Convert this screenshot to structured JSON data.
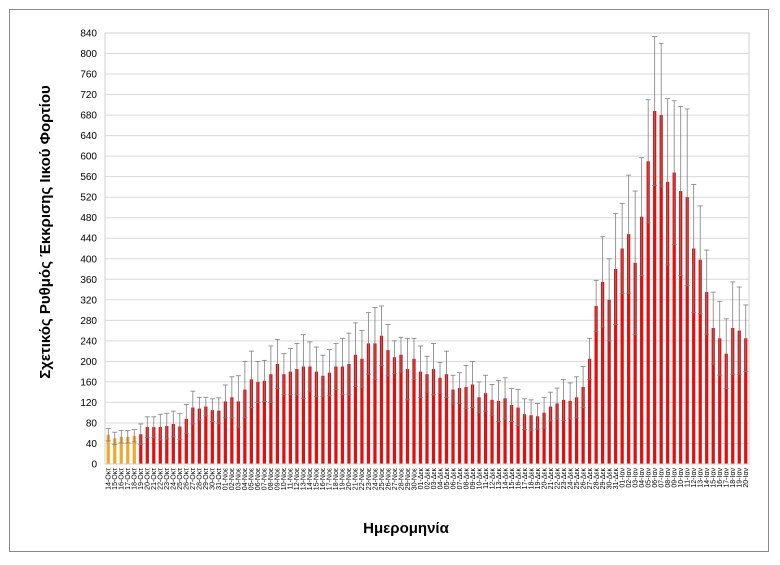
{
  "chart_data": {
    "type": "bar",
    "xlabel": "Ημερομηνία",
    "ylabel": "Σχετικός Ρυθμός Έκκρισης Ιικού Φορτίου",
    "ylim": [
      0,
      840
    ],
    "yticks": [
      0,
      40,
      80,
      120,
      160,
      200,
      240,
      280,
      320,
      360,
      400,
      440,
      480,
      520,
      560,
      600,
      640,
      680,
      720,
      760,
      800,
      840
    ],
    "grid": "horizontal",
    "colors": {
      "early": "#F0A830",
      "main": "#E01010",
      "error": "#7F7F7F"
    },
    "categories": [
      "14-Οκτ",
      "15-Οκτ",
      "16-Οκτ",
      "17-Οκτ",
      "18-Οκτ",
      "19-Οκτ",
      "20-Οκτ",
      "21-Οκτ",
      "22-Οκτ",
      "23-Οκτ",
      "24-Οκτ",
      "25-Οκτ",
      "26-Οκτ",
      "27-Οκτ",
      "28-Οκτ",
      "29-Οκτ",
      "30-Οκτ",
      "31-Οκτ",
      "01-Νοε",
      "02-Νοε",
      "03-Νοε",
      "04-Νοε",
      "05-Νοε",
      "06-Νοε",
      "07-Νοε",
      "08-Νοε",
      "09-Νοε",
      "10-Νοε",
      "11-Νοε",
      "12-Νοε",
      "13-Νοε",
      "14-Νοε",
      "15-Νοε",
      "16-Νοε",
      "17-Νοε",
      "18-Νοε",
      "19-Νοε",
      "20-Νοε",
      "21-Νοε",
      "22-Νοε",
      "23-Νοε",
      "24-Νοε",
      "25-Νοε",
      "26-Νοε",
      "27-Νοε",
      "28-Νοε",
      "29-Νοε",
      "30-Νοε",
      "01-Δεκ",
      "02-Δεκ",
      "03-Δεκ",
      "04-Δεκ",
      "05-Δεκ",
      "06-Δεκ",
      "07-Δεκ",
      "08-Δεκ",
      "09-Δεκ",
      "10-Δεκ",
      "11-Δεκ",
      "12-Δεκ",
      "13-Δεκ",
      "14-Δεκ",
      "15-Δεκ",
      "16-Δεκ",
      "17-Δεκ",
      "18-Δεκ",
      "19-Δεκ",
      "20-Δεκ",
      "21-Δεκ",
      "22-Δεκ",
      "23-Δεκ",
      "24-Δεκ",
      "25-Δεκ",
      "26-Δεκ",
      "27-Δεκ",
      "28-Δεκ",
      "29-Δεκ",
      "30-Δεκ",
      "31-Δεκ",
      "01-Ιαν",
      "02-Ιαν",
      "03-Ιαν",
      "04-Ιαν",
      "05-Ιαν",
      "06-Ιαν",
      "07-Ιαν",
      "08-Ιαν",
      "09-Ιαν",
      "10-Ιαν",
      "11-Ιαν",
      "12-Ιαν",
      "13-Ιαν",
      "14-Ιαν",
      "15-Ιαν",
      "16-Ιαν",
      "17-Ιαν",
      "18-Ιαν",
      "19-Ιαν",
      "20-Ιαν"
    ],
    "values": [
      57,
      50,
      53,
      53,
      55,
      58,
      72,
      72,
      72,
      74,
      78,
      73,
      88,
      110,
      108,
      112,
      105,
      104,
      122,
      130,
      122,
      145,
      165,
      160,
      162,
      175,
      195,
      175,
      180,
      185,
      190,
      190,
      180,
      172,
      178,
      190,
      190,
      195,
      213,
      205,
      235,
      235,
      250,
      222,
      208,
      213,
      185,
      205,
      180,
      175,
      185,
      168,
      175,
      145,
      148,
      150,
      155,
      130,
      138,
      125,
      123,
      128,
      115,
      110,
      97,
      95,
      93,
      100,
      112,
      118,
      125,
      123,
      130,
      150,
      205,
      308,
      355,
      320,
      380,
      420,
      448,
      392,
      482,
      590,
      688,
      680,
      550,
      568,
      532,
      520,
      420,
      398,
      335,
      265,
      245,
      215,
      265,
      260,
      245
    ],
    "errors": [
      12,
      12,
      12,
      12,
      12,
      20,
      20,
      20,
      25,
      25,
      25,
      25,
      28,
      32,
      22,
      18,
      22,
      25,
      32,
      40,
      50,
      55,
      55,
      40,
      40,
      55,
      48,
      40,
      45,
      50,
      62,
      48,
      48,
      40,
      45,
      45,
      55,
      60,
      62,
      55,
      60,
      70,
      58,
      50,
      32,
      34,
      60,
      40,
      50,
      35,
      50,
      30,
      45,
      28,
      30,
      42,
      45,
      30,
      35,
      30,
      40,
      40,
      32,
      35,
      30,
      30,
      25,
      30,
      28,
      30,
      40,
      35,
      40,
      40,
      40,
      50,
      88,
      80,
      108,
      88,
      115,
      140,
      115,
      120,
      145,
      140,
      162,
      140,
      165,
      172,
      125,
      105,
      82,
      70,
      72,
      68,
      90,
      85,
      65
    ]
  }
}
